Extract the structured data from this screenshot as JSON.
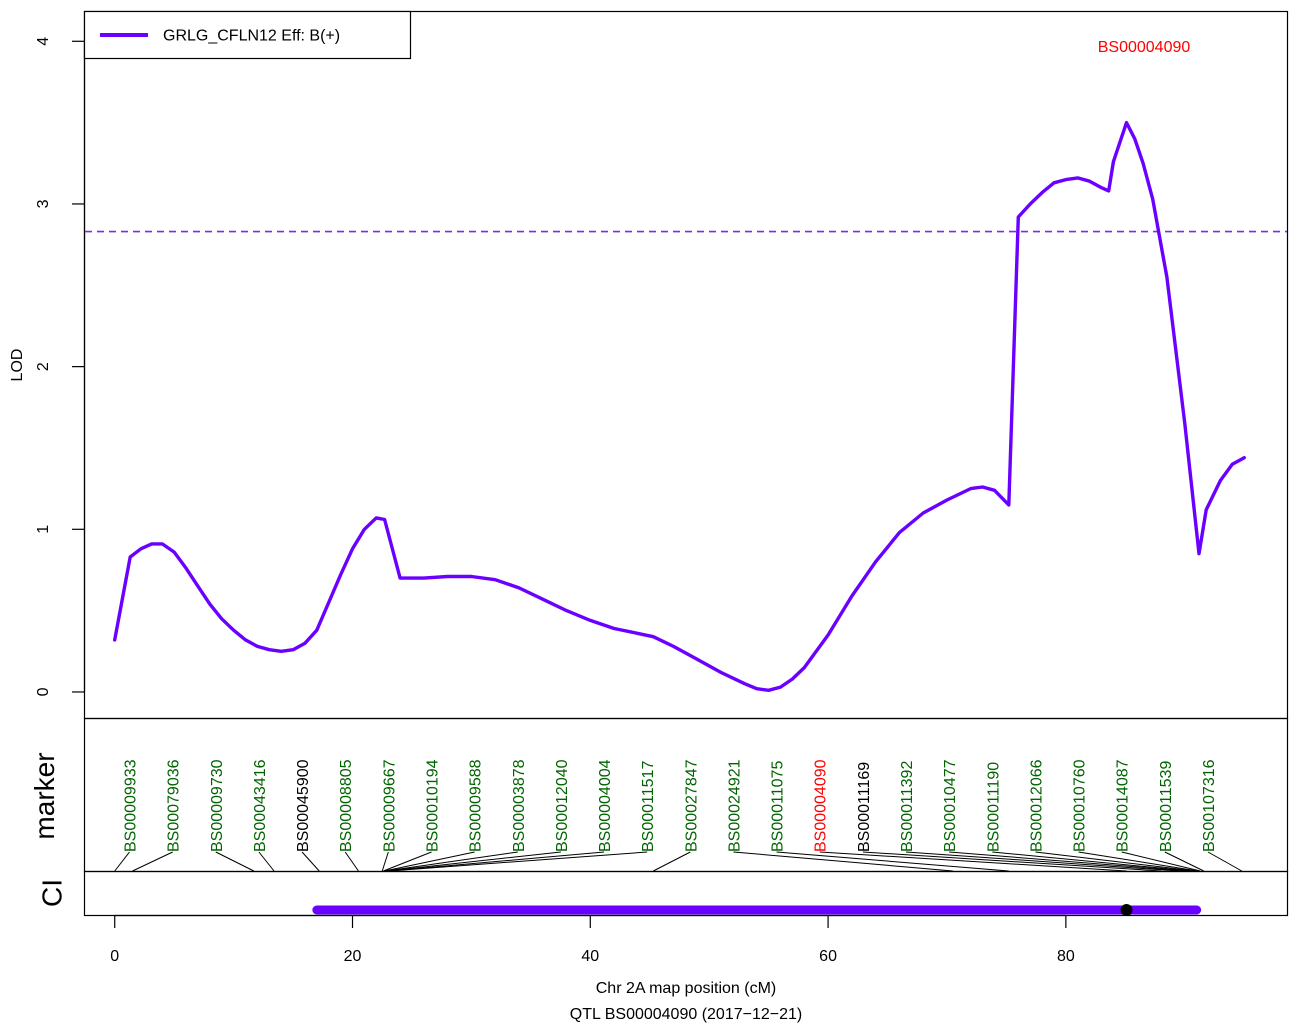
{
  "chart_data": {
    "type": "line",
    "xlabel": "Chr 2A map position (cM)",
    "subtitle": "QTL BS00004090 (2017−12−21)",
    "ylabel": "LOD",
    "xlim": [
      -2.5,
      98.6
    ],
    "ylim": [
      -0.16,
      4.18
    ],
    "x_ticks": [
      0,
      20,
      40,
      60,
      80
    ],
    "y_ticks": [
      0,
      1,
      2,
      3,
      4
    ],
    "threshold": 2.83,
    "threshold_color": "#7a2ee8",
    "series": [
      {
        "name": "GRLG_CFLN12 Eff: B(+)",
        "color": "#6a00ff",
        "x": [
          0,
          1.3,
          2.2,
          3.1,
          4,
          5,
          6,
          7,
          8,
          9,
          10,
          11,
          12,
          13,
          14,
          15,
          16,
          17,
          18,
          19,
          20,
          21,
          22,
          22.7,
          24,
          26,
          28,
          30,
          32,
          34,
          36,
          38,
          40,
          42,
          44,
          45.3,
          47,
          49,
          51,
          53,
          54,
          55,
          56,
          57,
          58,
          60,
          62,
          64,
          66,
          68,
          70,
          72,
          73,
          74,
          75.2,
          76,
          77,
          78,
          79,
          80,
          81,
          82,
          83,
          83.6,
          84,
          85.1,
          85.8,
          86.5,
          87.3,
          88.5,
          90,
          91.2,
          91.8,
          93,
          94,
          95
        ],
        "y": [
          0.32,
          0.83,
          0.88,
          0.91,
          0.91,
          0.86,
          0.76,
          0.65,
          0.54,
          0.45,
          0.38,
          0.32,
          0.28,
          0.26,
          0.25,
          0.26,
          0.3,
          0.38,
          0.55,
          0.72,
          0.88,
          1.0,
          1.07,
          1.06,
          0.7,
          0.7,
          0.71,
          0.71,
          0.69,
          0.64,
          0.57,
          0.5,
          0.44,
          0.39,
          0.36,
          0.34,
          0.28,
          0.2,
          0.12,
          0.05,
          0.02,
          0.01,
          0.03,
          0.08,
          0.15,
          0.35,
          0.59,
          0.8,
          0.98,
          1.1,
          1.18,
          1.25,
          1.26,
          1.24,
          1.15,
          2.92,
          3.0,
          3.07,
          3.13,
          3.15,
          3.16,
          3.14,
          3.1,
          3.08,
          3.26,
          3.5,
          3.4,
          3.25,
          3.03,
          2.55,
          1.65,
          0.85,
          1.12,
          1.3,
          1.4,
          1.44
        ]
      }
    ],
    "legend": "top-left",
    "peak_label": "BS00004090",
    "peak_label_color": "#ff0000",
    "markers": [
      {
        "name": "BS00009933",
        "pos": 0,
        "color": "#006400"
      },
      {
        "name": "BS00079036",
        "pos": 1.5,
        "color": "#006400"
      },
      {
        "name": "BS00009730",
        "pos": 11.7,
        "color": "#006400"
      },
      {
        "name": "BS00043416",
        "pos": 13.4,
        "color": "#006400"
      },
      {
        "name": "BS00045900",
        "pos": 17.2,
        "color": "#000000"
      },
      {
        "name": "BS00008805",
        "pos": 20.5,
        "color": "#006400"
      },
      {
        "name": "BS00009667",
        "pos": 22.5,
        "color": "#006400"
      },
      {
        "name": "BS00010194",
        "pos": 22.6,
        "color": "#006400"
      },
      {
        "name": "BS00009588",
        "pos": 22.7,
        "color": "#006400"
      },
      {
        "name": "BS00003878",
        "pos": 22.8,
        "color": "#006400"
      },
      {
        "name": "BS00012040",
        "pos": 22.9,
        "color": "#006400"
      },
      {
        "name": "BS00004004",
        "pos": 23.0,
        "color": "#006400"
      },
      {
        "name": "BS00011517",
        "pos": 23.1,
        "color": "#006400"
      },
      {
        "name": "BS00027847",
        "pos": 45.3,
        "color": "#006400"
      },
      {
        "name": "BS00024921",
        "pos": 70.5,
        "color": "#006400"
      },
      {
        "name": "BS00011075",
        "pos": 75.2,
        "color": "#006400"
      },
      {
        "name": "BS00004090",
        "pos": 85.1,
        "color": "#ff0000"
      },
      {
        "name": "BS00011169",
        "pos": 88.0,
        "color": "#000000"
      },
      {
        "name": "BS00011392",
        "pos": 89.5,
        "color": "#006400"
      },
      {
        "name": "BS00010477",
        "pos": 90.2,
        "color": "#006400"
      },
      {
        "name": "BS00011190",
        "pos": 90.6,
        "color": "#006400"
      },
      {
        "name": "BS00012066",
        "pos": 90.9,
        "color": "#006400"
      },
      {
        "name": "BS00010760",
        "pos": 91.1,
        "color": "#006400"
      },
      {
        "name": "BS00014087",
        "pos": 91.3,
        "color": "#006400"
      },
      {
        "name": "BS00011539",
        "pos": 91.6,
        "color": "#006400"
      },
      {
        "name": "BS00107316",
        "pos": 94.8,
        "color": "#006400"
      }
    ],
    "marker_panel_label": "marker",
    "ci_panel_label": "CI",
    "ci": {
      "low": 17,
      "high": 91,
      "peak": 85.1,
      "color": "#6a00ff"
    }
  }
}
